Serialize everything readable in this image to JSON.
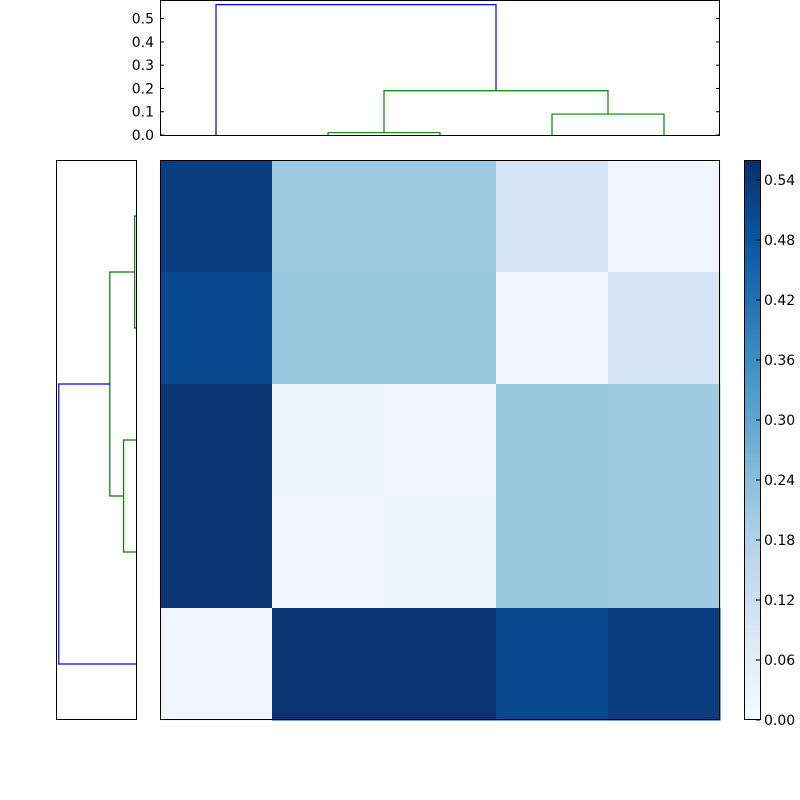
{
  "chart_data": [
    {
      "type": "dendrogram",
      "panel": "top",
      "orientation": "top",
      "ylim": [
        0,
        0.58
      ],
      "yticks": [
        "0.0",
        "0.1",
        "0.2",
        "0.3",
        "0.4",
        "0.5"
      ],
      "ytick_values": [
        0,
        0.1,
        0.2,
        0.3,
        0.4,
        0.5
      ],
      "leaf_count": 5,
      "links": [
        {
          "left": 1,
          "right": 2,
          "height": 0.01,
          "left_height": 0,
          "right_height": 0,
          "color": "#008000"
        },
        {
          "left": 3,
          "right": 4,
          "height": 0.09,
          "left_height": 0,
          "right_height": 0,
          "color": "#008000"
        },
        {
          "left": 1.5,
          "right": 3.5,
          "height": 0.19,
          "left_height": 0.01,
          "right_height": 0.09,
          "color": "#008000"
        },
        {
          "left": 0,
          "right": 2.5,
          "height": 0.56,
          "left_height": 0,
          "right_height": 0.19,
          "color": "#0000ff"
        }
      ]
    },
    {
      "type": "dendrogram",
      "panel": "left",
      "orientation": "left",
      "leaf_count": 5,
      "max_height": 0.58,
      "links": [
        {
          "left": 0,
          "right": 1,
          "height": 0.01,
          "left_height": 0,
          "right_height": 0,
          "color": "#008000"
        },
        {
          "left": 2,
          "right": 3,
          "height": 0.09,
          "left_height": 0,
          "right_height": 0,
          "color": "#008000"
        },
        {
          "left": 0.5,
          "right": 2.5,
          "height": 0.19,
          "left_height": 0.01,
          "right_height": 0.09,
          "color": "#008000"
        },
        {
          "left": 1.5,
          "right": 4,
          "height": 0.56,
          "left_height": 0.19,
          "right_height": 0,
          "color": "#0000ff"
        }
      ]
    },
    {
      "type": "heatmap",
      "panel": "main",
      "colormap": "Blues",
      "vmin": 0,
      "vmax": 0.56,
      "values": [
        [
          0.53,
          0.21,
          0.21,
          0.1,
          0.02
        ],
        [
          0.51,
          0.22,
          0.22,
          0.02,
          0.1
        ],
        [
          0.55,
          0.03,
          0.02,
          0.22,
          0.21
        ],
        [
          0.55,
          0.02,
          0.03,
          0.22,
          0.21
        ],
        [
          0.02,
          0.55,
          0.55,
          0.51,
          0.53
        ]
      ],
      "colorbar": {
        "ticks": [
          "0.00",
          "0.06",
          "0.12",
          "0.18",
          "0.24",
          "0.30",
          "0.36",
          "0.42",
          "0.48",
          "0.54"
        ],
        "tick_values": [
          0,
          0.06,
          0.12,
          0.18,
          0.24,
          0.3,
          0.36,
          0.42,
          0.48,
          0.54
        ]
      }
    }
  ]
}
